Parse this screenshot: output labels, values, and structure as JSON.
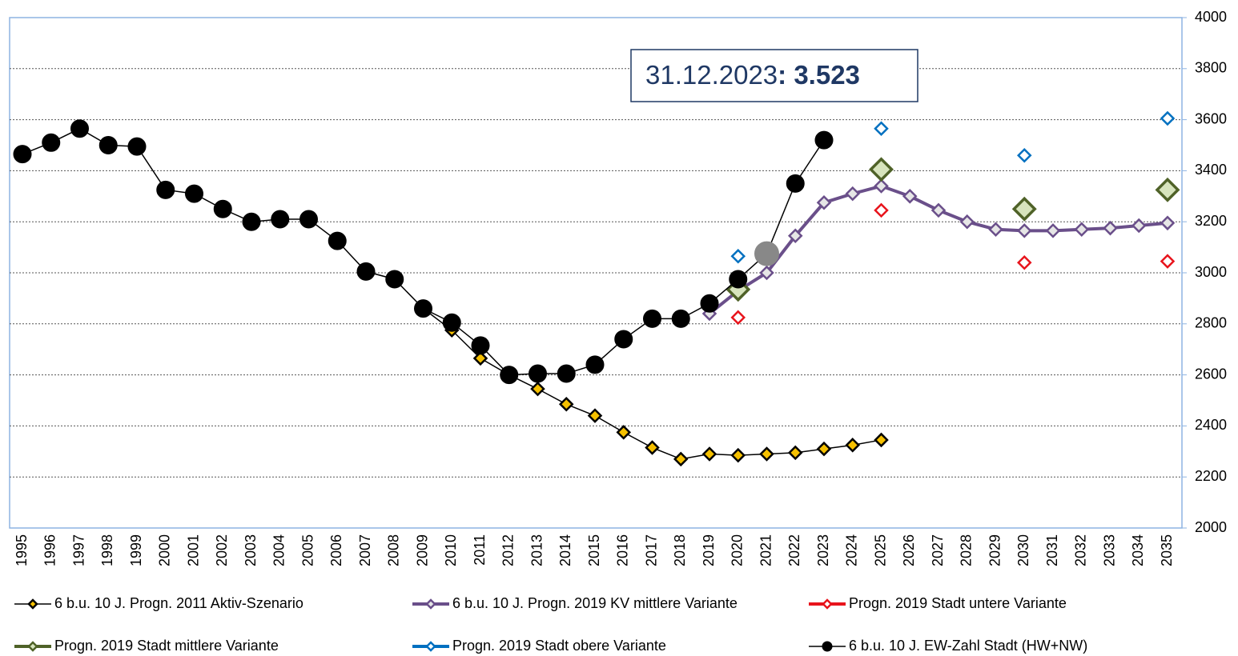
{
  "chart_data": {
    "type": "line",
    "categories": [
      "1995",
      "1996",
      "1997",
      "1998",
      "1999",
      "2000",
      "2001",
      "2002",
      "2003",
      "2004",
      "2005",
      "2006",
      "2007",
      "2008",
      "2009",
      "2010",
      "2011",
      "2012",
      "2013",
      "2014",
      "2015",
      "2016",
      "2017",
      "2018",
      "2019",
      "2020",
      "2021",
      "2022",
      "2023",
      "2024",
      "2025",
      "2026",
      "2027",
      "2028",
      "2029",
      "2030",
      "2031",
      "2032",
      "2033",
      "2034",
      "2035"
    ],
    "ylim": [
      2000,
      4000
    ],
    "yticks": [
      2000,
      2200,
      2400,
      2600,
      2800,
      3000,
      3200,
      3400,
      3600,
      3800,
      4000
    ],
    "grid": true,
    "annotation": {
      "date": "31.12.2023",
      "value": ": 3.523"
    },
    "series": [
      {
        "name": "6 b.u. 10 J. Progn. 2011 Aktiv-Szenario",
        "color": "#000000",
        "marker": "diamond",
        "marker_fill": "#f5c000",
        "marker_stroke": "#000000",
        "line": true,
        "values": [
          null,
          null,
          null,
          null,
          null,
          null,
          null,
          null,
          null,
          null,
          null,
          null,
          null,
          null,
          2860,
          2775,
          2665,
          2600,
          2545,
          2485,
          2440,
          2375,
          2315,
          2270,
          2290,
          2285,
          2290,
          2295,
          2310,
          2325,
          2345,
          null,
          null,
          null,
          null,
          null,
          null,
          null,
          null,
          null,
          null
        ]
      },
      {
        "name": "6 b.u. 10 J. Progn. 2019 KV mittlere Variante",
        "color": "#6a4f8a",
        "marker": "diamond",
        "marker_fill": "#e6e6e6",
        "marker_stroke": "#6a4f8a",
        "line": true,
        "values": [
          null,
          null,
          null,
          null,
          null,
          null,
          null,
          null,
          null,
          null,
          null,
          null,
          null,
          null,
          null,
          null,
          null,
          null,
          null,
          null,
          null,
          null,
          null,
          null,
          2840,
          2930,
          3000,
          3145,
          3275,
          3310,
          3340,
          3300,
          3245,
          3200,
          3170,
          3165,
          3165,
          3170,
          3175,
          3185,
          3195
        ]
      },
      {
        "name": "Progn. 2019 Stadt untere Variante",
        "color": "#e8141c",
        "marker": "diamond",
        "marker_fill": "#ffffff",
        "marker_stroke": "#e8141c",
        "line": false,
        "values": [
          null,
          null,
          null,
          null,
          null,
          null,
          null,
          null,
          null,
          null,
          null,
          null,
          null,
          null,
          null,
          null,
          null,
          null,
          null,
          null,
          null,
          null,
          null,
          null,
          null,
          2825,
          null,
          null,
          null,
          null,
          3245,
          null,
          null,
          null,
          null,
          3040,
          null,
          null,
          null,
          null,
          3045
        ]
      },
      {
        "name": "Progn. 2019 Stadt mittlere Variante",
        "color": "#4f6228",
        "marker": "diamond-large",
        "marker_fill": "#d7e4bd",
        "marker_stroke": "#4f6228",
        "line": false,
        "values": [
          null,
          null,
          null,
          null,
          null,
          null,
          null,
          null,
          null,
          null,
          null,
          null,
          null,
          null,
          null,
          null,
          null,
          null,
          null,
          null,
          null,
          null,
          null,
          null,
          null,
          2935,
          null,
          null,
          null,
          null,
          3405,
          null,
          null,
          null,
          null,
          3250,
          null,
          null,
          null,
          null,
          3325
        ]
      },
      {
        "name": "Progn. 2019 Stadt obere Variante",
        "color": "#0070c0",
        "marker": "diamond",
        "marker_fill": "#ffffff",
        "marker_stroke": "#0070c0",
        "line": false,
        "values": [
          null,
          null,
          null,
          null,
          null,
          null,
          null,
          null,
          null,
          null,
          null,
          null,
          null,
          null,
          null,
          null,
          null,
          null,
          null,
          null,
          null,
          null,
          null,
          null,
          null,
          3065,
          null,
          null,
          null,
          null,
          3565,
          null,
          null,
          null,
          null,
          3460,
          null,
          null,
          null,
          null,
          3605
        ]
      },
      {
        "name": "6 b.u. 10 J. EW-Zahl Stadt (HW+NW)",
        "color": "#000000",
        "marker": "circle",
        "marker_fill": "#000000",
        "marker_stroke": "#000000",
        "line": true,
        "highlight": {
          "index": 26,
          "color": "#888888"
        },
        "values": [
          3465,
          3510,
          3565,
          3500,
          3495,
          3325,
          3310,
          3250,
          3200,
          3210,
          3210,
          3125,
          3005,
          2975,
          2860,
          2805,
          2715,
          2600,
          2605,
          2605,
          2640,
          2740,
          2820,
          2820,
          2880,
          2975,
          3075,
          3350,
          3520,
          null,
          null,
          null,
          null,
          null,
          null,
          null,
          null,
          null,
          null,
          null,
          null
        ]
      }
    ]
  }
}
